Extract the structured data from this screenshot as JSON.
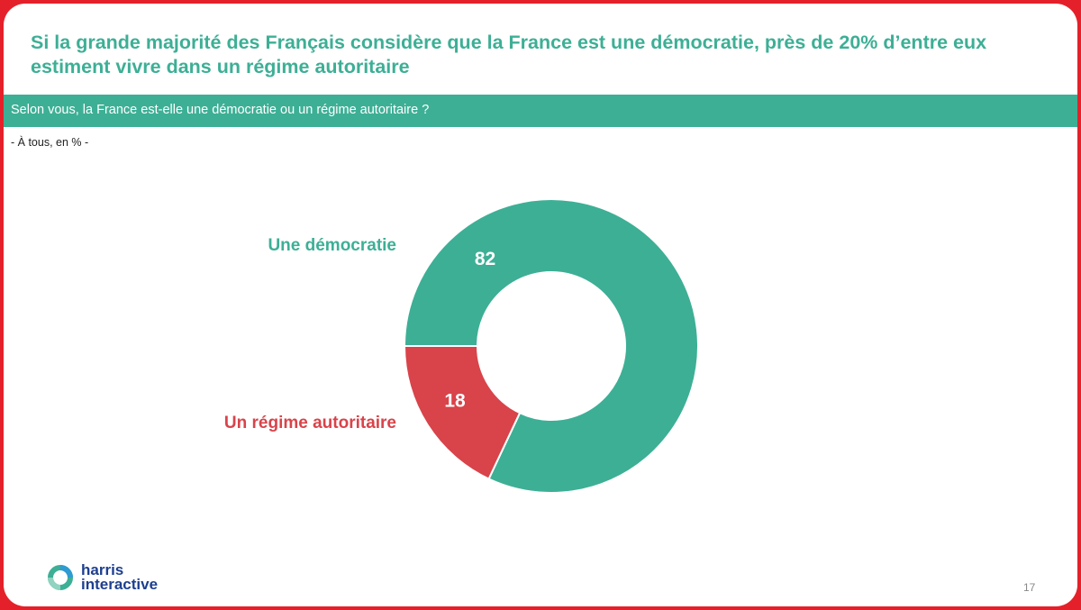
{
  "slide": {
    "title": "Si la grande majorité des Français considère que la France est une démocratie, près de 20% d’entre eux estiment vivre dans un régime autoritaire",
    "question": "Selon vous, la France est-elle une démocratie ou un régime autoritaire ?",
    "base_note": "- À tous, en % -",
    "page_number": "17",
    "logo": {
      "line1": "harris",
      "line2": "interactive"
    }
  },
  "colors": {
    "accent": "#3daf95",
    "secondary": "#d9434a",
    "frame": "#e4212a",
    "logo_text": "#1d3f8f"
  },
  "chart_data": {
    "type": "pie",
    "variant": "donut",
    "unit": "%",
    "title": "",
    "categories": [
      "Une démocratie",
      "Un régime autoritaire"
    ],
    "values": [
      82,
      18
    ],
    "colors": [
      "#3daf95",
      "#d9434a"
    ]
  }
}
